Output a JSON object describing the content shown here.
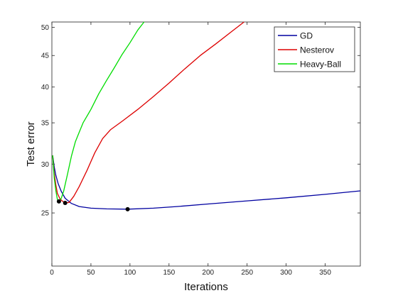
{
  "chart_data": {
    "type": "line",
    "title": "",
    "xlabel": "Iterations",
    "ylabel": "Test error",
    "xlim": [
      0,
      395
    ],
    "ylim": [
      20.5,
      51
    ],
    "y_scale": "log",
    "xticks": [
      0,
      50,
      100,
      150,
      200,
      250,
      300,
      350
    ],
    "yticks": [
      25,
      30,
      35,
      40,
      45,
      50
    ],
    "grid": false,
    "legend_position": "top-right",
    "series": [
      {
        "name": "GD",
        "color": "#0000a0",
        "points": [
          [
            1,
            31.0
          ],
          [
            3,
            29.7
          ],
          [
            5,
            28.8
          ],
          [
            8,
            27.9
          ],
          [
            12,
            27.1
          ],
          [
            17,
            26.4
          ],
          [
            25,
            25.9
          ],
          [
            35,
            25.6
          ],
          [
            50,
            25.45
          ],
          [
            70,
            25.38
          ],
          [
            97,
            25.35
          ],
          [
            130,
            25.45
          ],
          [
            160,
            25.6
          ],
          [
            200,
            25.85
          ],
          [
            250,
            26.15
          ],
          [
            300,
            26.45
          ],
          [
            350,
            26.8
          ],
          [
            395,
            27.15
          ]
        ],
        "marker": [
          97,
          25.35
        ]
      },
      {
        "name": "Nesterov",
        "color": "#dd0000",
        "points": [
          [
            1,
            31.0
          ],
          [
            3,
            29.0
          ],
          [
            5,
            27.8
          ],
          [
            7,
            26.9
          ],
          [
            10,
            26.4
          ],
          [
            13,
            26.15
          ],
          [
            17,
            25.95
          ],
          [
            22,
            26.0
          ],
          [
            28,
            26.6
          ],
          [
            35,
            27.6
          ],
          [
            45,
            29.3
          ],
          [
            55,
            31.3
          ],
          [
            65,
            33.0
          ],
          [
            75,
            34.1
          ],
          [
            90,
            35.2
          ],
          [
            110,
            36.8
          ],
          [
            130,
            38.6
          ],
          [
            150,
            40.6
          ],
          [
            170,
            42.8
          ],
          [
            190,
            45.0
          ],
          [
            210,
            47.0
          ],
          [
            230,
            49.2
          ],
          [
            246,
            51.0
          ]
        ],
        "marker": [
          17,
          25.95
        ]
      },
      {
        "name": "Heavy-Ball",
        "color": "#00dd00",
        "points": [
          [
            1,
            31.0
          ],
          [
            3,
            28.5
          ],
          [
            5,
            27.2
          ],
          [
            7,
            26.3
          ],
          [
            9,
            26.1
          ],
          [
            12,
            26.4
          ],
          [
            15,
            27.1
          ],
          [
            20,
            28.9
          ],
          [
            25,
            30.9
          ],
          [
            30,
            32.6
          ],
          [
            35,
            33.8
          ],
          [
            40,
            35.0
          ],
          [
            50,
            36.8
          ],
          [
            60,
            39.0
          ],
          [
            70,
            41.0
          ],
          [
            80,
            43.0
          ],
          [
            90,
            45.2
          ],
          [
            100,
            47.2
          ],
          [
            110,
            49.5
          ],
          [
            118,
            51.0
          ]
        ],
        "marker": [
          9,
          26.1
        ]
      }
    ]
  }
}
